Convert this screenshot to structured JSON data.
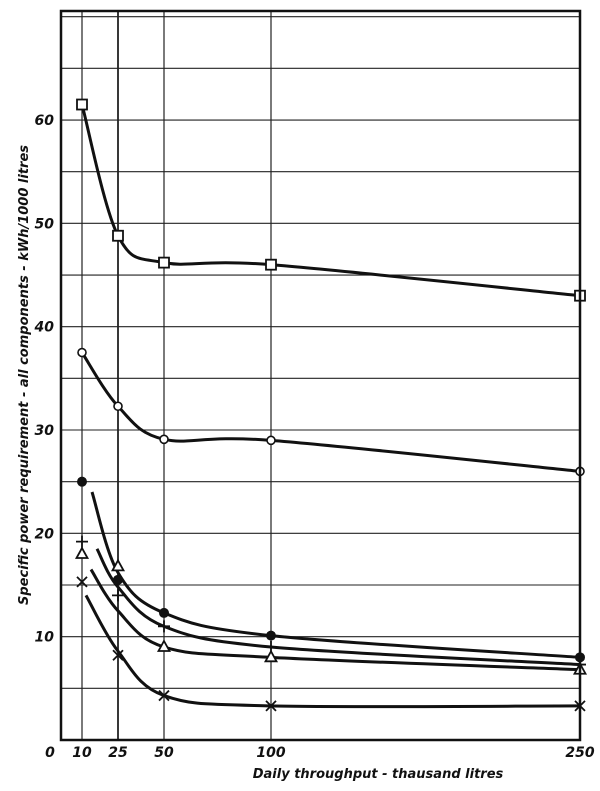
{
  "chart_data": {
    "type": "line",
    "title": "",
    "xlabel": "Daily throughput - thausand litres",
    "ylabel": "Specific power requirement - all components - kWh/1000 litres",
    "x": [
      10,
      25,
      50,
      100,
      250
    ],
    "x_tick_labels": [
      "0",
      "10",
      "25",
      "50",
      "100",
      "250"
    ],
    "y_tick_labels": [
      "10",
      "20",
      "30",
      "40",
      "50",
      "60"
    ],
    "ylim": [
      0,
      70
    ],
    "grid": true,
    "legend": "none",
    "series": [
      {
        "name": "square-series",
        "marker": "square-open",
        "values": [
          61.5,
          48.8,
          46.2,
          46.0,
          43.0
        ]
      },
      {
        "name": "circle-open-series",
        "marker": "circle-open",
        "values": [
          37.5,
          32.3,
          29.1,
          29.0,
          26.0
        ]
      },
      {
        "name": "circle-filled-series",
        "marker": "circle-filled",
        "values": [
          25.0,
          15.5,
          12.3,
          10.1,
          8.0
        ]
      },
      {
        "name": "plus-series",
        "marker": "plus",
        "values": [
          19.2,
          14.0,
          11.0,
          9.0,
          7.3
        ]
      },
      {
        "name": "triangle-series",
        "marker": "triangle-open",
        "values": [
          18.0,
          16.8,
          9.0,
          8.0,
          6.8
        ]
      },
      {
        "name": "cross-series",
        "marker": "cross",
        "values": [
          15.3,
          8.2,
          4.3,
          3.3,
          3.3
        ]
      }
    ]
  }
}
